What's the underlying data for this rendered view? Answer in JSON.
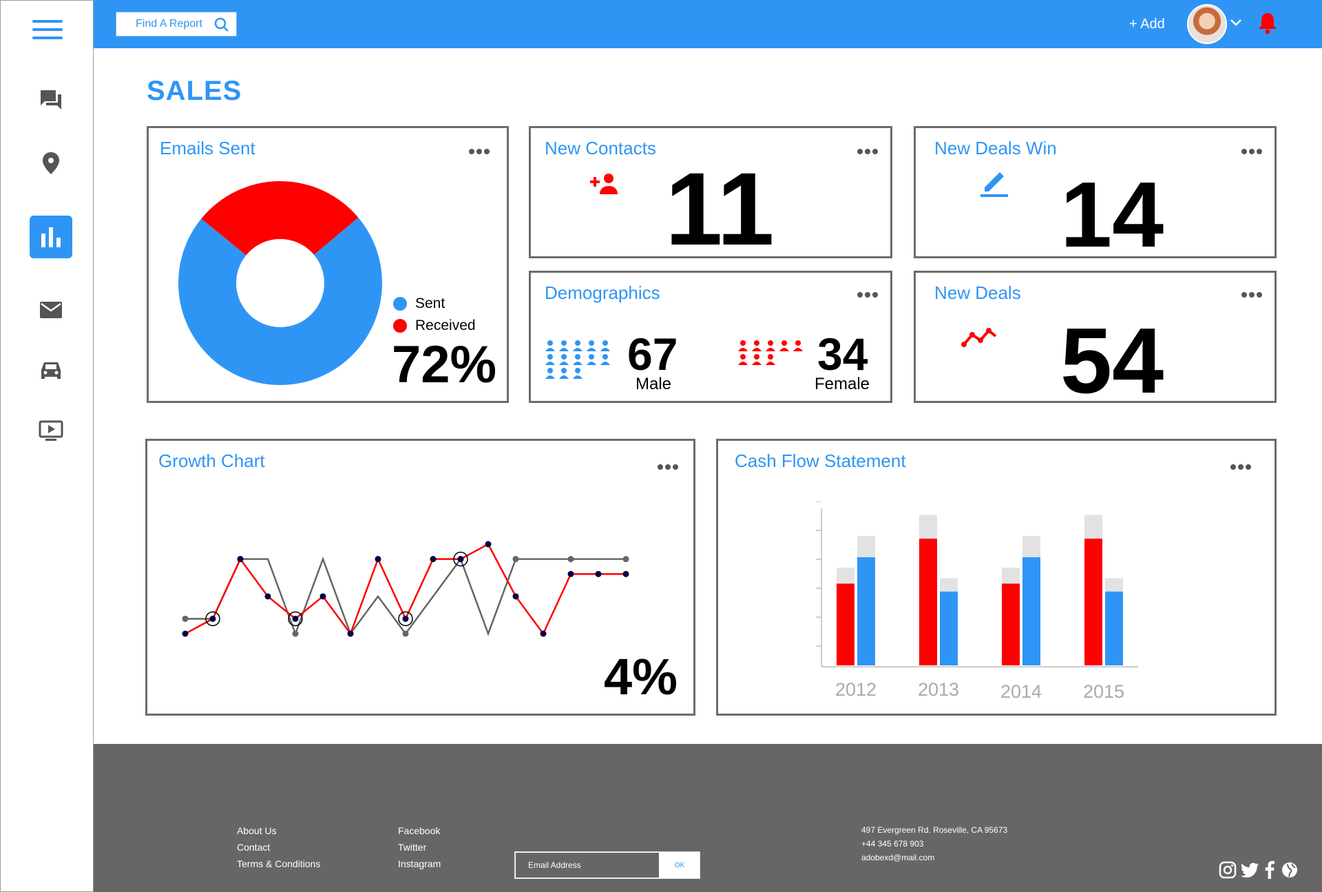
{
  "colors": {
    "accent": "#2f95f5",
    "red": "#ff0000",
    "blue": "#2f95f5",
    "gray": "#666666"
  },
  "header": {
    "search_placeholder": "Find A Report",
    "add_label": "+ Add"
  },
  "sidebar": {
    "items": [
      "menu-icon",
      "chat-icon",
      "location-icon",
      "bar-chart-icon",
      "mail-icon",
      "car-icon",
      "tv-icon"
    ],
    "active": "bar-chart-icon"
  },
  "page": {
    "title": "SALES"
  },
  "cards": {
    "emails": {
      "title": "Emails Sent",
      "percent": "72%",
      "legend": [
        "Sent",
        "Received"
      ]
    },
    "contacts": {
      "title": "New Contacts",
      "value": "11"
    },
    "deals_win": {
      "title": "New Deals Win",
      "value": "14"
    },
    "demographics": {
      "title": "Demographics",
      "male_value": "67",
      "male_label": "Male",
      "female_value": "34",
      "female_label": "Female"
    },
    "new_deals": {
      "title": "New Deals",
      "value": "54"
    },
    "growth": {
      "title": "Growth Chart",
      "percent": "4%"
    },
    "cashflow": {
      "title": "Cash Flow Statement"
    }
  },
  "chart_data": [
    {
      "type": "pie",
      "title": "Emails Sent",
      "labels": [
        "Sent",
        "Received"
      ],
      "values": [
        72,
        28
      ],
      "colors": [
        "#2f95f5",
        "#ff0000"
      ]
    },
    {
      "type": "line",
      "title": "Growth Chart",
      "x": [
        1,
        2,
        3,
        4,
        5,
        6,
        7,
        8,
        9,
        10,
        11,
        12,
        13,
        14,
        15,
        16,
        17
      ],
      "series": [
        {
          "values": [
            2,
            2,
            10,
            10,
            0,
            10,
            0,
            5,
            0,
            5,
            10,
            0,
            10,
            10,
            10,
            10,
            10
          ],
          "color": "#666666"
        },
        {
          "values": [
            0,
            2,
            10,
            5,
            2,
            5,
            0,
            10,
            2,
            10,
            10,
            12,
            5,
            0,
            8,
            8,
            8
          ],
          "color": "#ff0000"
        }
      ],
      "ylim": [
        0,
        12
      ],
      "grid": false
    },
    {
      "type": "bar",
      "title": "Cash Flow Statement",
      "categories": [
        "2012",
        "2013",
        "2014",
        "2015"
      ],
      "series": [
        {
          "values": [
            3.1,
            4.8,
            3.1,
            4.8
          ],
          "color": "#ff0000",
          "cap": [
            0.6,
            0.9,
            0.6,
            0.9
          ]
        },
        {
          "values": [
            4.1,
            2.8,
            4.1,
            2.8
          ],
          "color": "#2f95f5",
          "cap": [
            0.8,
            0.5,
            0.8,
            0.5
          ]
        }
      ],
      "ylim": [
        0,
        6
      ],
      "grid": false
    }
  ],
  "footer": {
    "col1": [
      "About Us",
      "Contact",
      "Terms & Conditions"
    ],
    "col2": [
      "Facebook",
      "Twitter",
      "Instagram"
    ],
    "email_placeholder": "Email Address",
    "ok_label": "OK",
    "address": "497 Evergreen Rd. Roseville, CA 95673",
    "phone": "+44 345 678 903",
    "email": "adobexd@mail.com",
    "social": [
      "instagram-icon",
      "twitter-icon",
      "facebook-icon",
      "globe-icon"
    ]
  }
}
